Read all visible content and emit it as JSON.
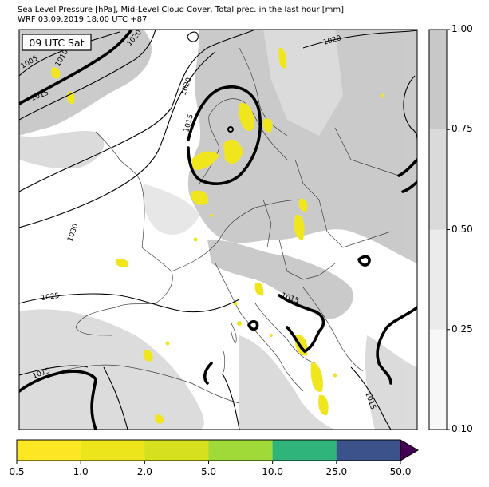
{
  "header": {
    "line1": "Sea Level Pressure [hPa], Mid-Level Cloud Cover, Total prec. in the last hour [mm]",
    "line2": "WRF 03.09.2019 18:00 UTC +87"
  },
  "map": {
    "time_label": "09 UTC Sat",
    "isobar_labels": [
      "1005",
      "1010",
      "1015",
      "1020",
      "1020",
      "1020",
      "1015",
      "1030",
      "1025",
      "1015",
      "1015",
      "1015"
    ],
    "land_color": "#ffffff",
    "cloud_color": "#c8c8c8",
    "precip_color": "#f0e61e",
    "coast_color": "#404040"
  },
  "cloud_colorbar": {
    "ticks": [
      "0.10",
      "0.25",
      "0.50",
      "0.75",
      "1.00"
    ],
    "levels": [
      0.1,
      0.25,
      0.5,
      0.75,
      1.0
    ],
    "colors": [
      "#f7f7f7",
      "#ebebeb",
      "#dadada",
      "#c8c8c8"
    ]
  },
  "precip_colorbar": {
    "ticks": [
      "0.5",
      "1.0",
      "2.0",
      "5.0",
      "10.0",
      "25.0",
      "50.0"
    ],
    "colors": [
      "#fde725",
      "#ece51b",
      "#d7e01e",
      "#a0da39",
      "#2fb47c",
      "#3b528b"
    ],
    "extend_color": "#440154"
  }
}
